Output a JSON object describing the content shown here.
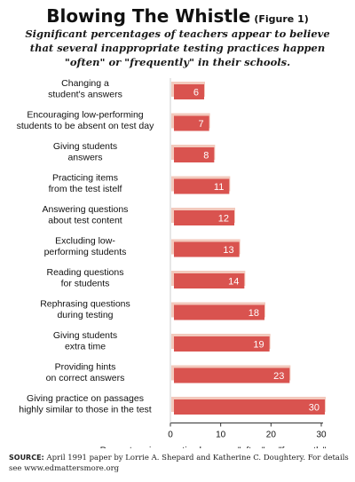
{
  "header": {
    "title": "Blowing The Whistle",
    "figure_label": "(Figure 1)",
    "subtitle": "Significant percentages of teachers appear to believe that several inappropriate testing practices happen \"often\" or \"frequently\" in their schools."
  },
  "chart_data": {
    "type": "bar",
    "orientation": "horizontal",
    "categories": [
      [
        "Changing a",
        "student's answers"
      ],
      [
        "Encouraging low-performing",
        "students to be absent on test day"
      ],
      [
        "Giving students",
        "answers"
      ],
      [
        "Practicing items",
        "from the test istelf"
      ],
      [
        "Answering questions",
        "about test content"
      ],
      [
        "Excluding low-",
        "performing students"
      ],
      [
        "Reading questions",
        "for students"
      ],
      [
        "Rephrasing questions",
        "during testing"
      ],
      [
        "Giving students",
        "extra time"
      ],
      [
        "Providing hints",
        "on correct answers"
      ],
      [
        "Giving practice on passages",
        "highly similar to those in the test"
      ]
    ],
    "values": [
      6,
      7,
      8,
      11,
      12,
      13,
      14,
      18,
      19,
      23,
      30
    ],
    "xlabel": "Percent saying practice happens \"often\" or \"frequently\"",
    "xlim": [
      0,
      30
    ],
    "xticks": [
      0,
      10,
      20,
      30
    ],
    "colors": {
      "bar": "#d9534f",
      "bar_shadow": "#f3c9bd",
      "label": "#ffffff",
      "axis": "#333333"
    }
  },
  "footer": {
    "source_label": "SOURCE:",
    "source_text": "April 1991 paper by Lorrie A. Shepard and Katherine C. Doughtery. For details see www.edmattersmore.org"
  }
}
